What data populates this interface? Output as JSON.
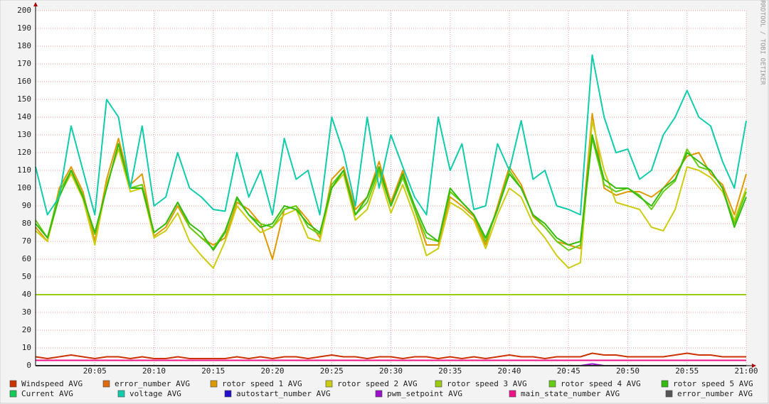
{
  "chart_data": {
    "type": "line",
    "watermark": "RRDTOOL / TOBI OETIKER",
    "x": [
      "20:00",
      "20:01",
      "20:02",
      "20:03",
      "20:04",
      "20:05",
      "20:06",
      "20:07",
      "20:08",
      "20:09",
      "20:10",
      "20:11",
      "20:12",
      "20:13",
      "20:14",
      "20:15",
      "20:16",
      "20:17",
      "20:18",
      "20:19",
      "20:20",
      "20:21",
      "20:22",
      "20:23",
      "20:24",
      "20:25",
      "20:26",
      "20:27",
      "20:28",
      "20:29",
      "20:30",
      "20:31",
      "20:32",
      "20:33",
      "20:34",
      "20:35",
      "20:36",
      "20:37",
      "20:38",
      "20:39",
      "20:40",
      "20:41",
      "20:42",
      "20:43",
      "20:44",
      "20:45",
      "20:46",
      "20:47",
      "20:48",
      "20:49",
      "20:50",
      "20:51",
      "20:52",
      "20:53",
      "20:54",
      "20:55",
      "20:56",
      "20:57",
      "20:58",
      "20:59",
      "21:00"
    ],
    "xticks": [
      "20:05",
      "20:10",
      "20:15",
      "20:20",
      "20:25",
      "20:30",
      "20:35",
      "20:40",
      "20:45",
      "20:50",
      "20:55",
      "21:00"
    ],
    "ylim": [
      0,
      200
    ],
    "yticks": [
      0,
      10,
      20,
      30,
      40,
      50,
      60,
      70,
      80,
      90,
      100,
      110,
      120,
      130,
      140,
      150,
      160,
      170,
      180,
      190,
      200
    ],
    "grid": true,
    "series": [
      {
        "name": "Windspeed AVG",
        "color": "#cc3300",
        "values": [
          5,
          4,
          5,
          6,
          5,
          4,
          5,
          5,
          4,
          5,
          4,
          4,
          5,
          4,
          4,
          4,
          4,
          5,
          4,
          5,
          4,
          5,
          5,
          4,
          5,
          6,
          5,
          5,
          4,
          5,
          5,
          4,
          5,
          5,
          4,
          5,
          4,
          5,
          4,
          5,
          6,
          5,
          5,
          4,
          5,
          5,
          5,
          7,
          6,
          6,
          5,
          5,
          5,
          5,
          6,
          7,
          6,
          6,
          5,
          5,
          5
        ]
      },
      {
        "name": "error_number AVG",
        "color": "#e06a10",
        "values": [
          0,
          0,
          0,
          0,
          0,
          0,
          0,
          0,
          0,
          0,
          0,
          0,
          0,
          0,
          0,
          0,
          0,
          0,
          0,
          0,
          0,
          0,
          0,
          0,
          0,
          0,
          0,
          0,
          0,
          0,
          0,
          0,
          0,
          0,
          0,
          0,
          0,
          0,
          0,
          0,
          0,
          0,
          0,
          0,
          0,
          0,
          0,
          0,
          0,
          0,
          0,
          0,
          0,
          0,
          0,
          0,
          0,
          0,
          0,
          0,
          0
        ]
      },
      {
        "name": "rotor speed 1 AVG",
        "color": "#dd9900",
        "values": [
          78,
          70,
          100,
          112,
          98,
          70,
          105,
          128,
          102,
          108,
          73,
          78,
          90,
          78,
          72,
          68,
          72,
          92,
          88,
          80,
          60,
          88,
          90,
          82,
          72,
          105,
          112,
          88,
          95,
          115,
          92,
          110,
          88,
          68,
          68,
          95,
          90,
          84,
          68,
          90,
          112,
          102,
          84,
          78,
          70,
          68,
          66,
          142,
          100,
          96,
          98,
          98,
          95,
          100,
          108,
          118,
          120,
          108,
          102,
          85,
          108
        ]
      },
      {
        "name": "rotor speed 2 AVG",
        "color": "#cccc11",
        "values": [
          76,
          70,
          96,
          108,
          94,
          68,
          102,
          122,
          98,
          100,
          72,
          76,
          86,
          70,
          62,
          55,
          70,
          90,
          82,
          75,
          78,
          85,
          88,
          72,
          70,
          100,
          108,
          82,
          88,
          108,
          86,
          102,
          84,
          62,
          66,
          92,
          88,
          82,
          66,
          85,
          100,
          95,
          80,
          72,
          62,
          55,
          58,
          138,
          110,
          92,
          90,
          88,
          78,
          76,
          88,
          112,
          110,
          106,
          98,
          82,
          100
        ]
      },
      {
        "name": "rotor speed 3 AVG",
        "color": "#99cc11",
        "values": [
          40,
          40,
          40,
          40,
          40,
          40,
          40,
          40,
          40,
          40,
          40,
          40,
          40,
          40,
          40,
          40,
          40,
          40,
          40,
          40,
          40,
          40,
          40,
          40,
          40,
          40,
          40,
          40,
          40,
          40,
          40,
          40,
          40,
          40,
          40,
          40,
          40,
          40,
          40,
          40,
          40,
          40,
          40,
          40,
          40,
          40,
          40,
          40,
          40,
          40,
          40,
          40,
          40,
          40,
          40,
          40,
          40,
          40,
          40,
          40,
          40
        ]
      },
      {
        "name": "rotor speed 4 AVG",
        "color": "#66cc11",
        "values": [
          82,
          72,
          98,
          110,
          96,
          74,
          100,
          125,
          100,
          102,
          75,
          80,
          92,
          78,
          72,
          66,
          76,
          94,
          85,
          80,
          78,
          88,
          90,
          78,
          74,
          102,
          110,
          85,
          92,
          110,
          90,
          106,
          88,
          72,
          70,
          98,
          92,
          85,
          70,
          88,
          110,
          100,
          85,
          78,
          70,
          65,
          68,
          128,
          102,
          98,
          100,
          96,
          88,
          98,
          104,
          122,
          112,
          110,
          100,
          80,
          98
        ]
      },
      {
        "name": "rotor speed 5 AVG",
        "color": "#33bb11",
        "values": [
          80,
          72,
          95,
          110,
          95,
          75,
          100,
          125,
          100,
          100,
          75,
          80,
          92,
          80,
          75,
          65,
          75,
          95,
          85,
          78,
          80,
          90,
          88,
          80,
          75,
          100,
          110,
          85,
          95,
          112,
          90,
          108,
          90,
          75,
          70,
          100,
          92,
          85,
          72,
          88,
          108,
          100,
          85,
          80,
          72,
          68,
          70,
          130,
          105,
          100,
          100,
          95,
          90,
          100,
          105,
          120,
          115,
          110,
          100,
          78,
          95
        ]
      },
      {
        "name": "Current AVG",
        "color": "#11cc55",
        "values": [
          0,
          0,
          0,
          0,
          0,
          0,
          0,
          0,
          0,
          0,
          0,
          0,
          0,
          0,
          0,
          0,
          0,
          0,
          0,
          0,
          0,
          0,
          0,
          0,
          0,
          0,
          0,
          0,
          0,
          0,
          0,
          0,
          0,
          0,
          0,
          0,
          0,
          0,
          0,
          0,
          0,
          0,
          0,
          0,
          0,
          0,
          0,
          0,
          0,
          0,
          0,
          0,
          0,
          0,
          0,
          0,
          0,
          0,
          0,
          0,
          0
        ]
      },
      {
        "name": "voltage AVG",
        "color": "#11ccaa",
        "values": [
          112,
          85,
          95,
          135,
          110,
          85,
          150,
          140,
          100,
          135,
          90,
          95,
          120,
          100,
          95,
          88,
          87,
          120,
          95,
          110,
          85,
          128,
          105,
          110,
          85,
          140,
          120,
          90,
          140,
          100,
          130,
          112,
          95,
          85,
          140,
          110,
          125,
          88,
          90,
          125,
          110,
          138,
          105,
          110,
          90,
          88,
          85,
          175,
          140,
          120,
          122,
          105,
          110,
          130,
          140,
          155,
          140,
          135,
          115,
          100,
          138
        ]
      },
      {
        "name": "autostart_number AVG",
        "color": "#2211cc",
        "values": [
          0,
          0,
          0,
          0,
          0,
          0,
          0,
          0,
          0,
          0,
          0,
          0,
          0,
          0,
          0,
          0,
          0,
          0,
          0,
          0,
          0,
          0,
          0,
          0,
          0,
          0,
          0,
          0,
          0,
          0,
          0,
          0,
          0,
          0,
          0,
          0,
          0,
          0,
          0,
          0,
          0,
          0,
          0,
          0,
          0,
          0,
          0,
          0,
          0,
          0,
          0,
          0,
          0,
          0,
          0,
          0,
          0,
          0,
          0,
          0,
          0
        ]
      },
      {
        "name": "pwm_setpoint AVG",
        "color": "#9911cc",
        "values": [
          0,
          0,
          0,
          0,
          0,
          0,
          0,
          0,
          0,
          0,
          0,
          0,
          0,
          0,
          0,
          0,
          0,
          0,
          0,
          0,
          0,
          0,
          0,
          0,
          0,
          0,
          0,
          0,
          0,
          0,
          0,
          0,
          0,
          0,
          0,
          0,
          0,
          0,
          0,
          0,
          0,
          0,
          0,
          0,
          0,
          0,
          0,
          1,
          0,
          0,
          0,
          0,
          0,
          0,
          0,
          0,
          0,
          0,
          0,
          0,
          0
        ]
      },
      {
        "name": "main_state_number AVG",
        "color": "#ee1188",
        "values": [
          3,
          3,
          3,
          3,
          3,
          3,
          3,
          3,
          3,
          3,
          3,
          3,
          3,
          3,
          3,
          3,
          3,
          3,
          3,
          3,
          3,
          3,
          3,
          3,
          3,
          3,
          3,
          3,
          3,
          3,
          3,
          3,
          3,
          3,
          3,
          3,
          3,
          3,
          3,
          3,
          3,
          3,
          3,
          3,
          3,
          3,
          3,
          3,
          3,
          3,
          3,
          3,
          3,
          3,
          3,
          3,
          3,
          3,
          3,
          3,
          3
        ]
      },
      {
        "name": "error_number AVG",
        "color": "#555555",
        "values": [
          0,
          0,
          0,
          0,
          0,
          0,
          0,
          0,
          0,
          0,
          0,
          0,
          0,
          0,
          0,
          0,
          0,
          0,
          0,
          0,
          0,
          0,
          0,
          0,
          0,
          0,
          0,
          0,
          0,
          0,
          0,
          0,
          0,
          0,
          0,
          0,
          0,
          0,
          0,
          0,
          0,
          0,
          0,
          0,
          0,
          0,
          0,
          0,
          0,
          0,
          0,
          0,
          0,
          0,
          0,
          0,
          0,
          0,
          0,
          0,
          0
        ]
      }
    ]
  }
}
